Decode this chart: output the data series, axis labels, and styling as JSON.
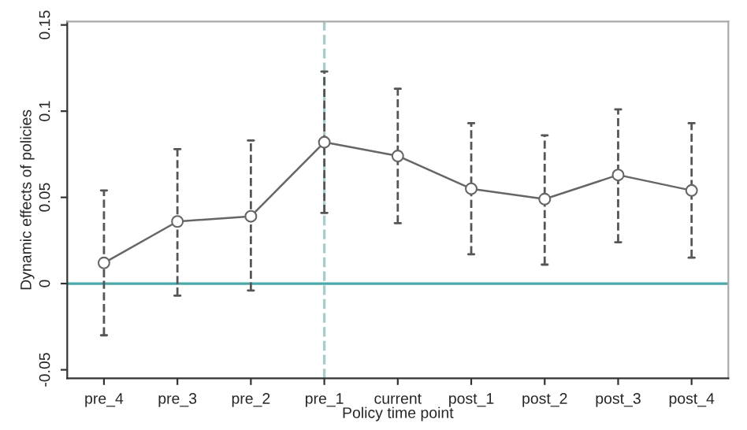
{
  "chart_data": {
    "type": "line",
    "xlabel": "Policy time point",
    "ylabel": "Dynamic effects of policies",
    "categories": [
      "pre_4",
      "pre_3",
      "pre_2",
      "pre_1",
      "current",
      "post_1",
      "post_2",
      "post_3",
      "post_4"
    ],
    "series": [
      {
        "color": "#666666",
        "values": [
          0.012,
          0.036,
          0.039,
          0.082,
          0.074,
          0.055,
          0.049,
          0.063,
          0.054
        ],
        "errors": [
          [
            -0.03,
            0.054
          ],
          [
            -0.007,
            0.078
          ],
          [
            -0.004,
            0.083
          ],
          [
            0.041,
            0.123
          ],
          [
            0.035,
            0.113
          ],
          [
            0.017,
            0.093
          ],
          [
            0.011,
            0.086
          ],
          [
            0.024,
            0.101
          ],
          [
            0.015,
            0.093
          ]
        ]
      }
    ],
    "ylim": [
      -0.055,
      0.152
    ],
    "yticks": [
      {
        "value": -0.05,
        "label": "-0.05"
      },
      0,
      {
        "value": 0.05,
        "label": "0.05"
      },
      {
        "value": 0.1,
        "label": "0.1"
      },
      {
        "value": 0.15,
        "label": "0.15"
      }
    ],
    "ref_lines": [
      {
        "axis": "y",
        "value": 0,
        "color": "#4aa8a8",
        "line_style": "solid"
      },
      {
        "axis": "x",
        "value": "pre_1",
        "color": "#a8cccc",
        "line_style": "dashed"
      }
    ],
    "marker": "circle",
    "line_style": "solid",
    "grid": false,
    "legend": false
  }
}
